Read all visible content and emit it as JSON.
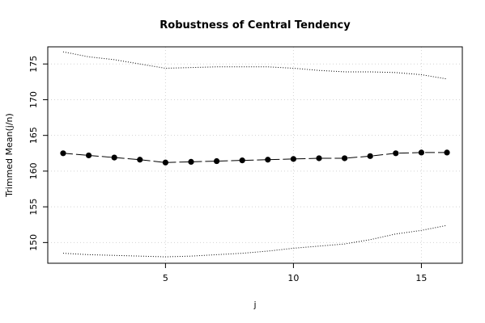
{
  "chart_data": {
    "type": "line",
    "title": "Robustness of Central Tendency",
    "xlabel": "j",
    "ylabel": "Trimmed Mean(j/n)",
    "xlim": [
      0.4,
      16.6
    ],
    "ylim": [
      147.1,
      177.4
    ],
    "x_ticks": [
      5,
      10,
      15
    ],
    "y_ticks": [
      150,
      155,
      160,
      165,
      170,
      175
    ],
    "grid": true,
    "legend": "none",
    "x": [
      1,
      2,
      3,
      4,
      5,
      6,
      7,
      8,
      9,
      10,
      11,
      12,
      13,
      14,
      15,
      16
    ],
    "series": [
      {
        "role": "trimmed-mean",
        "style": "dashed-with-points",
        "values": [
          162.5,
          162.2,
          161.9,
          161.6,
          161.2,
          161.3,
          161.4,
          161.5,
          161.6,
          161.7,
          161.8,
          161.8,
          162.1,
          162.5,
          162.6,
          162.6
        ]
      },
      {
        "role": "upper-band",
        "style": "dotted",
        "values": [
          176.7,
          176.0,
          175.6,
          175.0,
          174.4,
          174.5,
          174.6,
          174.6,
          174.6,
          174.4,
          174.1,
          173.9,
          173.9,
          173.8,
          173.5,
          172.9
        ]
      },
      {
        "role": "lower-band",
        "style": "dotted",
        "values": [
          148.5,
          148.3,
          148.2,
          148.1,
          148.0,
          148.1,
          148.3,
          148.5,
          148.8,
          149.2,
          149.5,
          149.8,
          150.4,
          151.2,
          151.7,
          152.4
        ]
      }
    ],
    "colors": {
      "line": "#000000",
      "grid": "#d3d3d3",
      "frame": "#000000",
      "background": "#ffffff"
    }
  }
}
